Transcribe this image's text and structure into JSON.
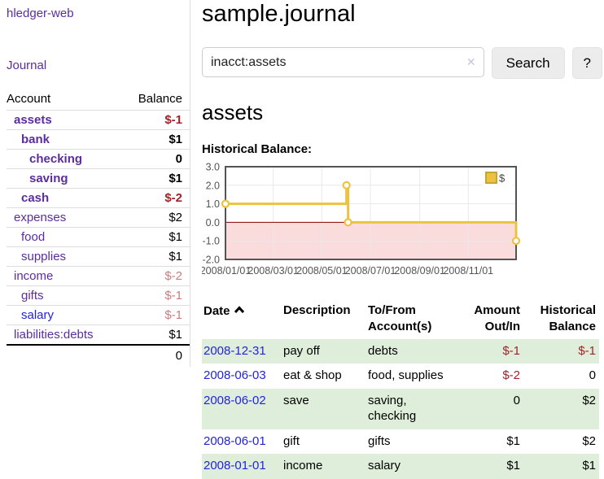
{
  "colors": {
    "purple": "#5b2d9e",
    "link_blue": "#2323dd",
    "negative": "#a02428",
    "negative_faded": "#c67e83",
    "row_green": "#dfeeda",
    "button_bg": "#ececec",
    "clear_icon": "#c9c3dc",
    "chart_line": "#edc240",
    "chart_negative_bg": "#fbdcdc",
    "chart_zero_line": "#8b0000",
    "chart_border": "#545454",
    "chart_grid": "#e8e8e8",
    "legend_border": "#c5a634"
  },
  "app": {
    "title": "hledger-web",
    "nav_journal": "Journal"
  },
  "sidebar": {
    "header": {
      "account": "Account",
      "balance": "Balance"
    },
    "accounts": [
      {
        "name": "assets",
        "depth": 1,
        "bold": true,
        "blue": false,
        "balance": "$-1",
        "balance_class": "neg"
      },
      {
        "name": "bank",
        "depth": 2,
        "bold": true,
        "blue": false,
        "balance": "$1",
        "balance_class": ""
      },
      {
        "name": "checking",
        "depth": 3,
        "bold": true,
        "blue": false,
        "balance": "0",
        "balance_class": ""
      },
      {
        "name": "saving",
        "depth": 3,
        "bold": true,
        "blue": false,
        "balance": "$1",
        "balance_class": ""
      },
      {
        "name": "cash",
        "depth": 2,
        "bold": true,
        "blue": false,
        "balance": "$-2",
        "balance_class": "neg"
      },
      {
        "name": "expenses",
        "depth": 1,
        "bold": false,
        "blue": false,
        "balance": "$2",
        "balance_class": ""
      },
      {
        "name": "food",
        "depth": 2,
        "bold": false,
        "blue": false,
        "balance": "$1",
        "balance_class": ""
      },
      {
        "name": "supplies",
        "depth": 2,
        "bold": false,
        "blue": false,
        "balance": "$1",
        "balance_class": ""
      },
      {
        "name": "income",
        "depth": 1,
        "bold": false,
        "blue": false,
        "balance": "$-2",
        "balance_class": "negfaded"
      },
      {
        "name": "gifts",
        "depth": 2,
        "bold": false,
        "blue": false,
        "balance": "$-1",
        "balance_class": "negfaded"
      },
      {
        "name": "salary",
        "depth": 2,
        "bold": false,
        "blue": true,
        "balance": "$-1",
        "balance_class": "negfaded"
      },
      {
        "name": "liabilities:debts",
        "depth": 1,
        "bold": false,
        "blue": false,
        "balance": "$1",
        "balance_class": ""
      }
    ],
    "total": "0"
  },
  "main": {
    "title": "sample.journal",
    "search": {
      "value": "inacct:assets",
      "clear_icon": "✕",
      "button": "Search",
      "help_button": "?"
    },
    "account_heading": "assets",
    "chart_label": "Historical Balance:"
  },
  "chart_data": {
    "type": "line",
    "title": "Historical Balance",
    "step": true,
    "ylim": [
      -2,
      3
    ],
    "y_ticks": [
      "3.0",
      "2.0",
      "1.0",
      "0.0",
      "-1.0",
      "-2.0"
    ],
    "x_ticks": [
      "2008/01/01",
      "2008/03/01",
      "2008/05/01",
      "2008/07/01",
      "2008/09/01",
      "2008/11/01"
    ],
    "x_range": [
      "2008-01-01",
      "2008-12-31"
    ],
    "grid": true,
    "legend_position": "top-right",
    "series": [
      {
        "name": "$",
        "points": [
          {
            "date": "2008-01-01",
            "value": 1
          },
          {
            "date": "2008-06-01",
            "value": 2
          },
          {
            "date": "2008-06-03",
            "value": 0
          },
          {
            "date": "2008-12-31",
            "value": -1
          }
        ]
      }
    ]
  },
  "register": {
    "columns": [
      "Date",
      "Description",
      "To/From Account(s)",
      "Amount Out/In",
      "Historical Balance"
    ],
    "rows": [
      {
        "date": "2008-12-31",
        "description": "pay off",
        "accounts": "debts",
        "amount": "$-1",
        "amount_neg": true,
        "balance": "$-1",
        "balance_neg": true,
        "shaded": true
      },
      {
        "date": "2008-06-03",
        "description": "eat & shop",
        "accounts": "food, supplies",
        "amount": "$-2",
        "amount_neg": true,
        "balance": "0",
        "balance_neg": false,
        "shaded": false
      },
      {
        "date": "2008-06-02",
        "description": "save",
        "accounts": "saving, checking",
        "amount": "0",
        "amount_neg": false,
        "balance": "$2",
        "balance_neg": false,
        "shaded": true
      },
      {
        "date": "2008-06-01",
        "description": "gift",
        "accounts": "gifts",
        "amount": "$1",
        "amount_neg": false,
        "balance": "$2",
        "balance_neg": false,
        "shaded": false
      },
      {
        "date": "2008-01-01",
        "description": "income",
        "accounts": "salary",
        "amount": "$1",
        "amount_neg": false,
        "balance": "$1",
        "balance_neg": false,
        "shaded": true
      }
    ]
  }
}
